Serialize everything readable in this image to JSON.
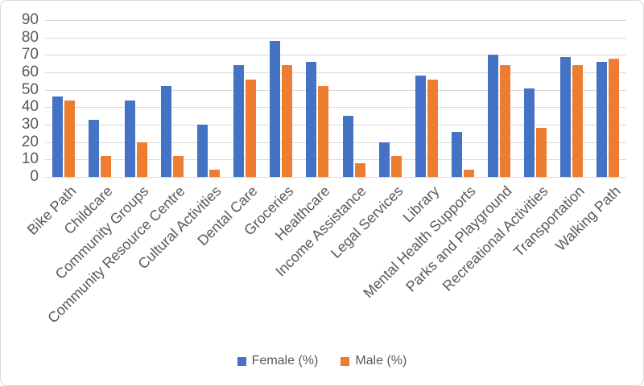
{
  "chart_data": {
    "type": "bar",
    "title": "",
    "xlabel": "",
    "ylabel": "",
    "categories": [
      "Bike Path",
      "Childcare",
      "Community Groups",
      "Community Resource Centre",
      "Cultural Activities",
      "Dental Care",
      "Groceries",
      "Healthcare",
      "Income Assistance",
      "Legal Services",
      "Library",
      "Mental Health Supports",
      "Parks and Playground",
      "Recreational Activities",
      "Transportation",
      "Walking Path"
    ],
    "series": [
      {
        "name": "Female (%)",
        "color": "#4472C4",
        "values": [
          46,
          33,
          44,
          52,
          30,
          64,
          78,
          66,
          35,
          20,
          58,
          26,
          70,
          51,
          69,
          66
        ]
      },
      {
        "name": "Male (%)",
        "color": "#ED7D31",
        "values": [
          44,
          12,
          20,
          12,
          4,
          56,
          64,
          52,
          8,
          12,
          56,
          4,
          64,
          28,
          64,
          68
        ]
      }
    ],
    "ylim": [
      0,
      90
    ],
    "yticks": [
      90,
      80,
      70,
      60,
      50,
      40,
      30,
      20,
      10,
      0
    ],
    "grid": true,
    "gridline_color": "#d9d9d9",
    "text_color": "#595959",
    "legend_position": "bottom"
  }
}
